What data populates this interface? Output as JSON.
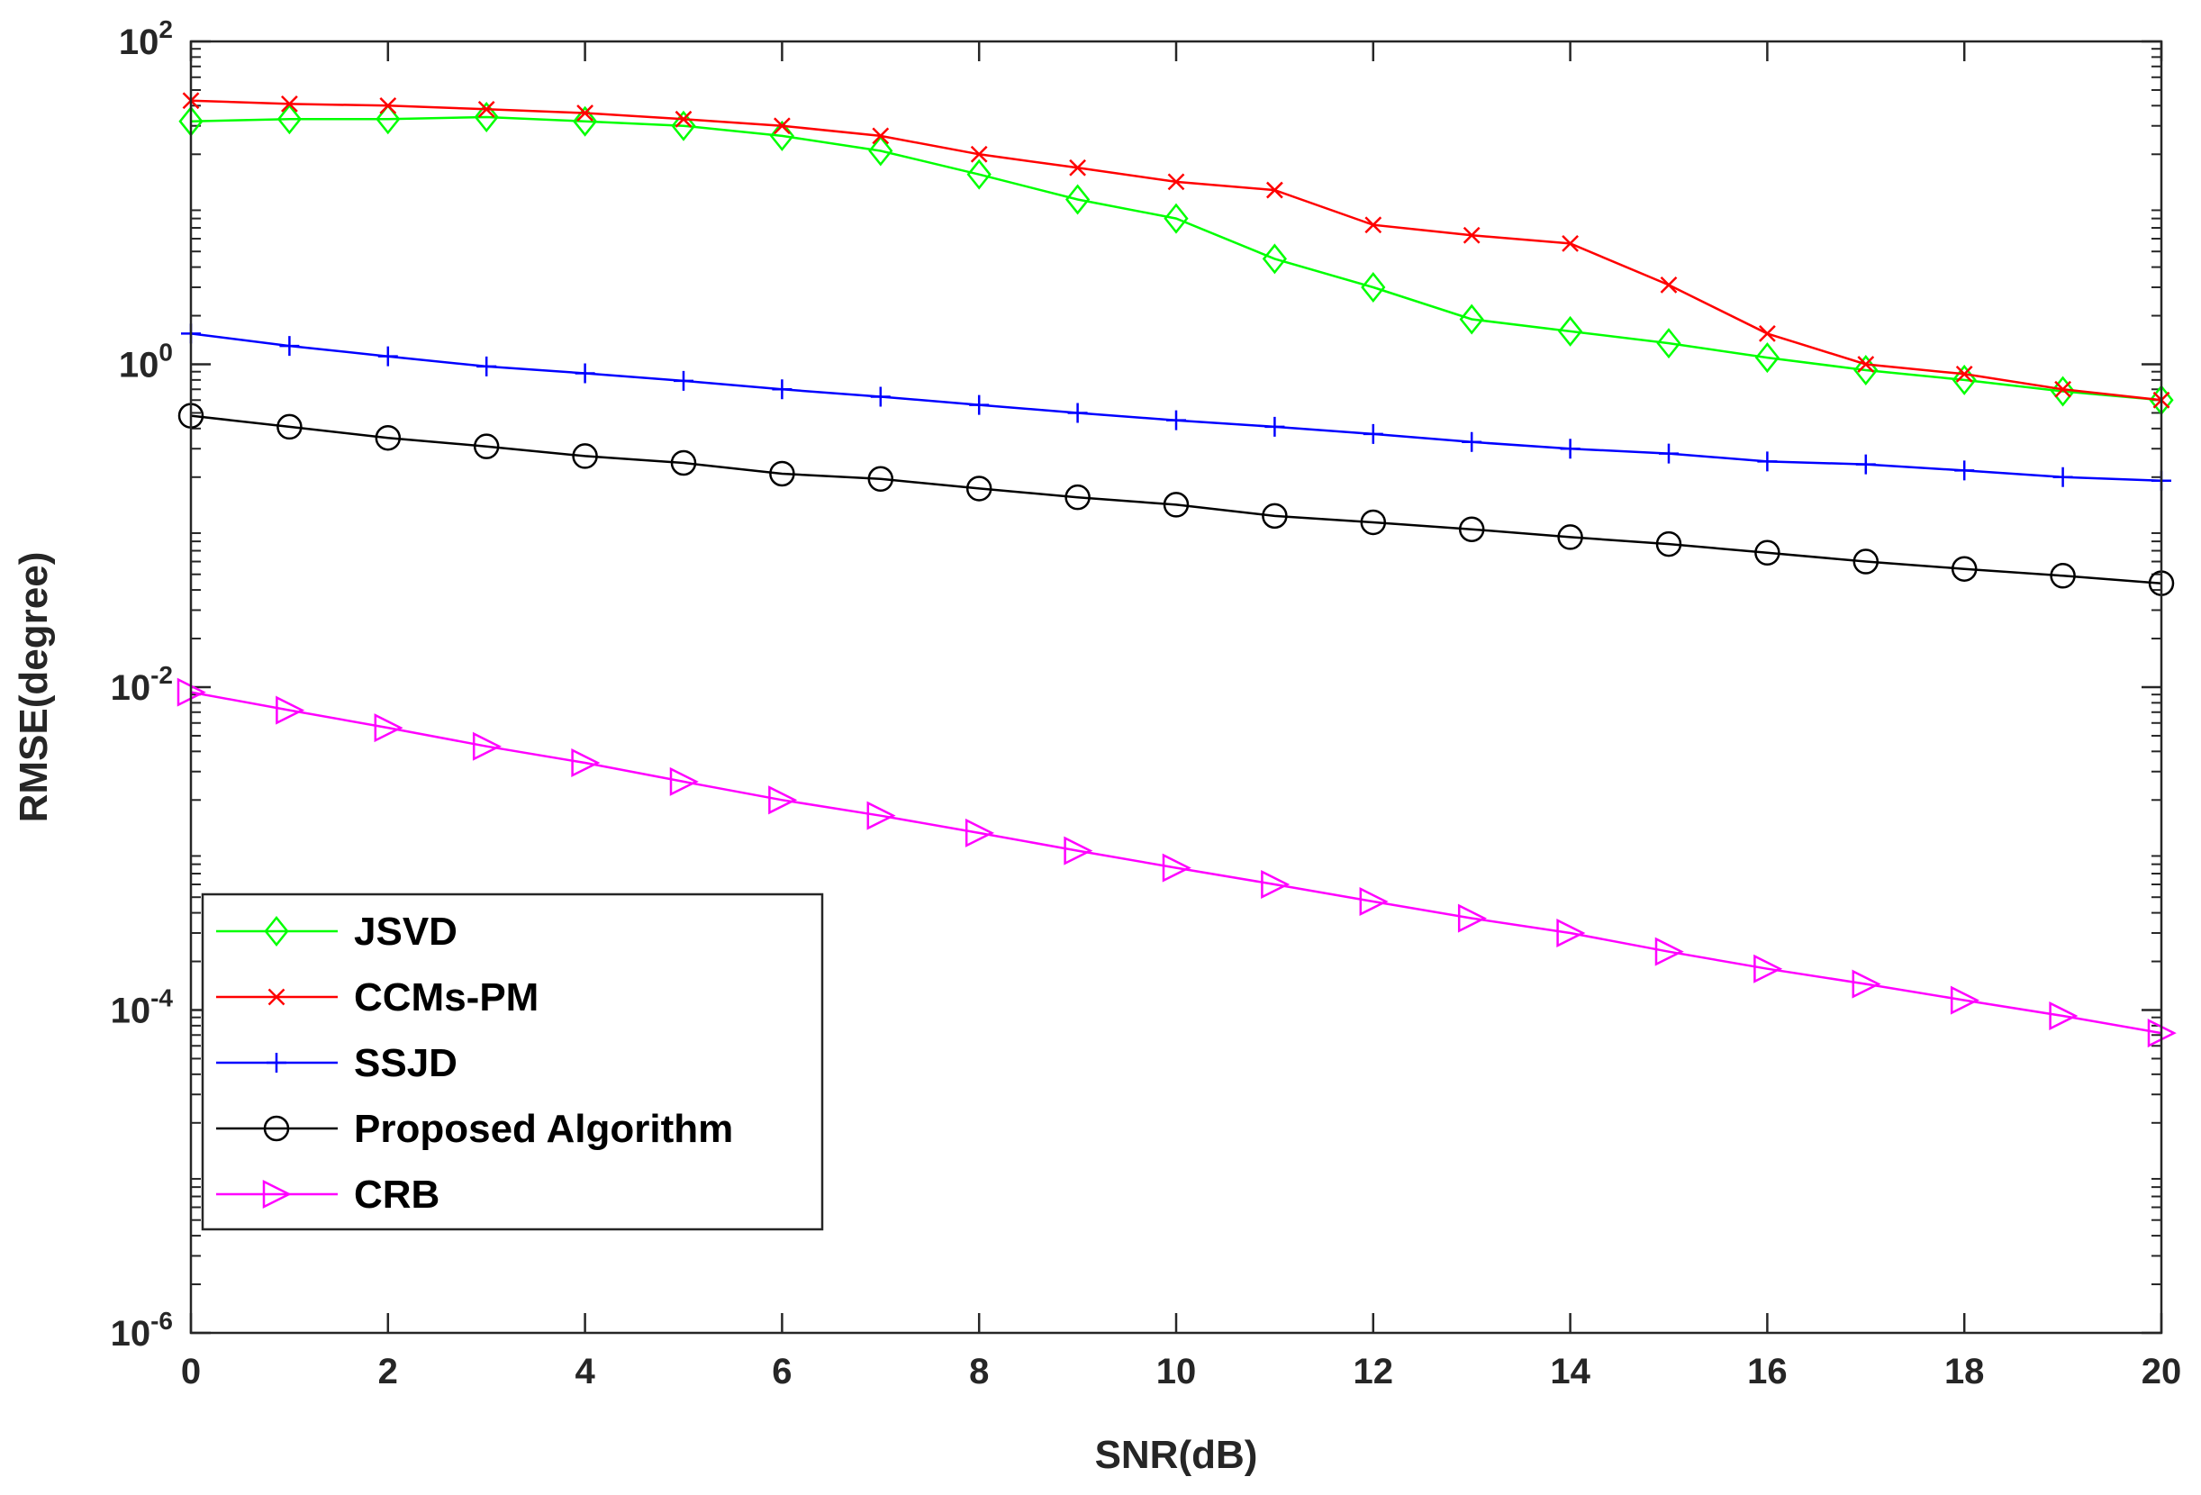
{
  "chart_data": {
    "type": "line",
    "xscale": "linear",
    "yscale": "log",
    "xlabel": "SNR(dB)",
    "ylabel": "RMSE(degree)",
    "xlim": [
      0,
      20
    ],
    "ylim": [
      1e-06,
      100
    ],
    "xticks": [
      0,
      2,
      4,
      6,
      8,
      10,
      12,
      14,
      16,
      18,
      20
    ],
    "xtick_labels": [
      "0",
      "2",
      "4",
      "6",
      "8",
      "10",
      "12",
      "14",
      "16",
      "18",
      "20"
    ],
    "yticks": [
      {
        "value": 1e-06,
        "base": "10",
        "exp": "-6"
      },
      {
        "value": 0.0001,
        "base": "10",
        "exp": "-4"
      },
      {
        "value": 0.01,
        "base": "10",
        "exp": "-2"
      },
      {
        "value": 1,
        "base": "10",
        "exp": "0"
      },
      {
        "value": 100,
        "base": "10",
        "exp": "2"
      }
    ],
    "legend_position": "bottom-left",
    "grid": false,
    "x": [
      0,
      1,
      2,
      3,
      4,
      5,
      6,
      7,
      8,
      9,
      10,
      11,
      12,
      13,
      14,
      15,
      16,
      17,
      18,
      19,
      20
    ],
    "series": [
      {
        "name": "JSVD",
        "color": "#00ff00",
        "marker": "diamond",
        "values": [
          32,
          33,
          33,
          34,
          32,
          30,
          26,
          21,
          15,
          10.5,
          8,
          4.5,
          3,
          1.9,
          1.6,
          1.35,
          1.1,
          0.92,
          0.8,
          0.68,
          0.6
        ]
      },
      {
        "name": "CCMs-PM",
        "color": "#ff0000",
        "marker": "x",
        "values": [
          43,
          41,
          40,
          38,
          36,
          33,
          30,
          26,
          20,
          16.5,
          13.5,
          12,
          7.3,
          6.3,
          5.6,
          3.1,
          1.55,
          1.0,
          0.87,
          0.7,
          0.6
        ]
      },
      {
        "name": "SSJD",
        "color": "#0000ff",
        "marker": "plus",
        "values": [
          1.55,
          1.3,
          1.12,
          0.97,
          0.88,
          0.79,
          0.7,
          0.63,
          0.56,
          0.5,
          0.45,
          0.41,
          0.37,
          0.33,
          0.3,
          0.28,
          0.25,
          0.24,
          0.22,
          0.2,
          0.19
        ]
      },
      {
        "name": "Proposed Algorithm",
        "color": "#000000",
        "marker": "circle",
        "values": [
          0.48,
          0.41,
          0.35,
          0.31,
          0.27,
          0.245,
          0.21,
          0.195,
          0.17,
          0.15,
          0.135,
          0.115,
          0.105,
          0.095,
          0.085,
          0.077,
          0.068,
          0.06,
          0.054,
          0.049,
          0.044
        ]
      },
      {
        "name": "CRB",
        "color": "#ff00ff",
        "marker": "triangle-right",
        "values": [
          0.0093,
          0.0072,
          0.0056,
          0.0043,
          0.0034,
          0.0026,
          0.002,
          0.0016,
          0.00125,
          0.00097,
          0.00076,
          0.0006,
          0.00047,
          0.00037,
          0.0003,
          0.00023,
          0.00018,
          0.000145,
          0.000115,
          9.2e-05,
          7.2e-05
        ]
      }
    ]
  }
}
